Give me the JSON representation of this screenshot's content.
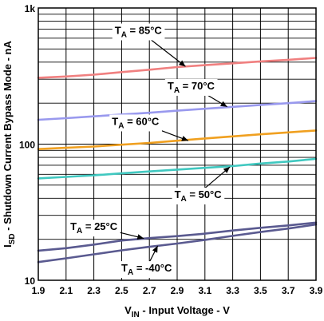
{
  "chart_data": {
    "type": "line",
    "title": "",
    "xlabel": {
      "main": "V",
      "sub": "IN",
      "rest": " - Input Voltage - V"
    },
    "ylabel": {
      "main": "I",
      "sub": "SD",
      "rest": " - Shutdown Current Bypass Mode - nA"
    },
    "x_range": [
      1.9,
      3.9
    ],
    "y_range": [
      10,
      1000
    ],
    "y_scale": "log",
    "grid": true,
    "x_ticks": [
      {
        "value": 1.9,
        "label": "1.9"
      },
      {
        "value": 2.1,
        "label": "2.1"
      },
      {
        "value": 2.3,
        "label": "2.3"
      },
      {
        "value": 2.5,
        "label": "2.5"
      },
      {
        "value": 2.7,
        "label": "2.7"
      },
      {
        "value": 2.9,
        "label": "2.9"
      },
      {
        "value": 3.1,
        "label": "3.1"
      },
      {
        "value": 3.3,
        "label": "3.3"
      },
      {
        "value": 3.5,
        "label": "3.5"
      },
      {
        "value": 3.7,
        "label": "3.7"
      },
      {
        "value": 3.9,
        "label": "3.9"
      }
    ],
    "y_ticks": [
      {
        "value": 10,
        "label": "10"
      },
      {
        "value": 100,
        "label": "100"
      },
      {
        "value": 1000,
        "label": "1k"
      }
    ],
    "series": [
      {
        "name": "85°C",
        "color": "#f08080",
        "x": [
          1.9,
          2.1,
          2.3,
          2.5,
          2.7,
          2.9,
          3.1,
          3.3,
          3.5,
          3.7,
          3.9
        ],
        "y": [
          307,
          314,
          324,
          338,
          352,
          368,
          380,
          392,
          405,
          416,
          430
        ]
      },
      {
        "name": "70°C",
        "color": "#9999ee",
        "x": [
          1.9,
          2.1,
          2.3,
          2.5,
          2.7,
          2.9,
          3.1,
          3.3,
          3.5,
          3.7,
          3.9
        ],
        "y": [
          151,
          155,
          160,
          165,
          170,
          176,
          182,
          188,
          194,
          200,
          207
        ]
      },
      {
        "name": "60°C",
        "color": "#f0a020",
        "x": [
          1.9,
          2.1,
          2.3,
          2.5,
          2.7,
          2.9,
          3.1,
          3.3,
          3.5,
          3.7,
          3.9
        ],
        "y": [
          92,
          94,
          96,
          99,
          102,
          106,
          110,
          114,
          118,
          122,
          126
        ]
      },
      {
        "name": "50°C",
        "color": "#40c8c0",
        "x": [
          1.9,
          2.1,
          2.3,
          2.5,
          2.7,
          2.9,
          3.1,
          3.3,
          3.5,
          3.7,
          3.9
        ],
        "y": [
          56,
          57.5,
          59,
          61,
          63,
          65,
          67,
          69,
          72,
          74.5,
          78
        ]
      },
      {
        "name": "25°C",
        "color": "#5a5a90",
        "x": [
          1.9,
          2.1,
          2.3,
          2.5,
          2.7,
          2.9,
          3.1,
          3.3,
          3.5,
          3.7,
          3.9
        ],
        "y": [
          16.5,
          17.2,
          18.3,
          19.6,
          20.4,
          21.1,
          22,
          23.2,
          24.3,
          25.3,
          26.5
        ]
      },
      {
        "name": "-40°C",
        "color": "#5a5a90",
        "x": [
          1.9,
          2.1,
          2.3,
          2.5,
          2.7,
          2.9,
          3.1,
          3.3,
          3.5,
          3.7,
          3.9
        ],
        "y": [
          13.6,
          14.5,
          15.5,
          16.6,
          17.6,
          18.6,
          19.8,
          21.2,
          22.6,
          24,
          25.7
        ]
      }
    ],
    "annotations": [
      {
        "series": "85°C",
        "label_main": "T",
        "label_sub": "A",
        "label_rest": " = 85°C",
        "text_x": 2.62,
        "text_y": 690,
        "arrow_x": 2.96,
        "arrow_y": 372
      },
      {
        "series": "70°C",
        "label_main": "T",
        "label_sub": "A",
        "label_rest": " = 70°C",
        "text_x": 3.0,
        "text_y": 270,
        "arrow_x": 3.26,
        "arrow_y": 188
      },
      {
        "series": "60°C",
        "label_main": "T",
        "label_sub": "A",
        "label_rest": " = 60°C",
        "text_x": 2.6,
        "text_y": 148,
        "arrow_x": 2.98,
        "arrow_y": 106
      },
      {
        "series": "50°C",
        "label_main": "T",
        "label_sub": "A",
        "label_rest": " = 50°C",
        "text_x": 3.05,
        "text_y": 43,
        "arrow_x": 3.28,
        "arrow_y": 68
      },
      {
        "series": "25°C",
        "label_main": "T",
        "label_sub": "A",
        "label_rest": " = 25°C",
        "text_x": 2.3,
        "text_y": 25,
        "arrow_x": 2.66,
        "arrow_y": 20.3
      },
      {
        "series": "-40°C",
        "label_main": "T",
        "label_sub": "A",
        "label_rest": " = -40°C",
        "text_x": 2.68,
        "text_y": 12.4,
        "arrow_x": 2.76,
        "arrow_y": 17.9
      }
    ]
  }
}
